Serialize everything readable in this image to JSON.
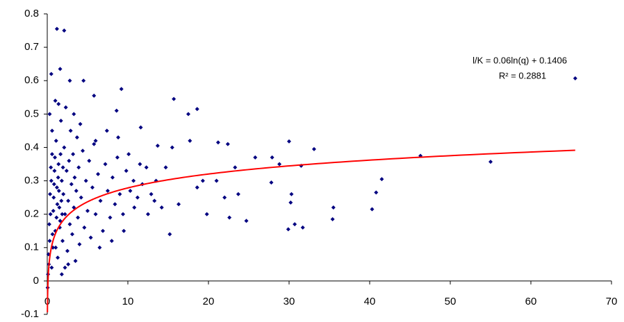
{
  "chart_data": {
    "type": "scatter",
    "x": [
      0.5,
      1.2,
      2.1,
      1.6,
      2.8,
      4.5,
      5.8,
      9.2,
      15.7,
      8.6,
      17.5,
      18.6,
      65.5,
      46.3,
      55,
      41.5,
      40.8,
      40.3,
      35.5,
      35.4,
      31.7,
      30.7,
      29.9,
      30.2,
      30.3,
      30.0,
      33.1,
      31.5,
      28.8,
      27.9,
      27.8,
      25.8,
      24.7,
      23.7,
      23.3,
      22.6,
      22.4,
      21.2,
      21.0,
      22.0,
      19.8,
      19.3,
      18.6,
      17.7,
      16.3,
      15.2,
      15.5,
      14.7,
      13.7,
      13.3,
      12.5,
      11.6,
      11.5,
      10.8,
      10.1,
      9.5,
      8.8,
      8.0,
      7.4,
      6.5,
      6.0,
      0.2,
      0.3,
      0.4,
      0.5,
      0.6,
      0.7,
      0.8,
      0.9,
      1.0,
      1.1,
      1.2,
      1.3,
      1.4,
      1.5,
      1.6,
      1.7,
      1.8,
      1.9,
      2.0,
      2.1,
      2.2,
      2.3,
      2.4,
      2.5,
      2.6,
      2.7,
      2.8,
      2.9,
      3.0,
      3.1,
      3.2,
      3.3,
      3.4,
      3.5,
      3.6,
      3.7,
      3.8,
      3.9,
      4.0,
      4.2,
      4.4,
      4.6,
      4.8,
      5.0,
      5.2,
      5.4,
      5.6,
      5.8,
      6.0,
      6.3,
      6.6,
      6.9,
      7.2,
      7.5,
      7.8,
      8.1,
      8.4,
      8.7,
      9.0,
      9.4,
      9.8,
      10.3,
      10.7,
      11.2,
      11.8,
      12.3,
      12.9,
      13.5,
      14.2,
      0.1,
      0.15,
      0.25,
      0.35,
      0.45,
      0.55,
      0.65,
      0.75,
      0.85,
      0.95,
      1.05,
      1.15,
      1.25,
      1.35,
      1.45,
      1.55,
      1.65,
      1.75,
      1.85,
      1.95,
      0.3,
      0.6,
      1.0,
      1.4,
      3.3,
      4.1,
      1.8,
      2.2,
      2.6,
      0.05
    ],
    "values": [
      0.62,
      0.755,
      0.75,
      0.635,
      0.6,
      0.6,
      0.555,
      0.575,
      0.545,
      0.51,
      0.5,
      0.515,
      0.607,
      0.375,
      0.357,
      0.305,
      0.265,
      0.215,
      0.22,
      0.185,
      0.16,
      0.17,
      0.155,
      0.235,
      0.26,
      0.418,
      0.395,
      0.345,
      0.35,
      0.37,
      0.295,
      0.37,
      0.18,
      0.26,
      0.34,
      0.19,
      0.41,
      0.415,
      0.3,
      0.25,
      0.2,
      0.3,
      0.28,
      0.42,
      0.23,
      0.14,
      0.4,
      0.34,
      0.405,
      0.24,
      0.2,
      0.46,
      0.35,
      0.22,
      0.38,
      0.15,
      0.43,
      0.12,
      0.45,
      0.1,
      0.42,
      0.05,
      0.12,
      0.2,
      0.3,
      0.38,
      0.1,
      0.25,
      0.33,
      0.15,
      0.42,
      0.28,
      0.07,
      0.35,
      0.22,
      0.18,
      0.48,
      0.3,
      0.12,
      0.26,
      0.4,
      0.2,
      0.52,
      0.33,
      0.09,
      0.24,
      0.36,
      0.17,
      0.45,
      0.29,
      0.14,
      0.38,
      0.22,
      0.31,
      0.06,
      0.27,
      0.43,
      0.19,
      0.34,
      0.11,
      0.25,
      0.39,
      0.16,
      0.3,
      0.21,
      0.36,
      0.13,
      0.28,
      0.41,
      0.2,
      0.32,
      0.24,
      0.15,
      0.35,
      0.27,
      0.19,
      0.31,
      0.23,
      0.37,
      0.26,
      0.2,
      0.33,
      0.27,
      0.3,
      0.25,
      0.29,
      0.34,
      0.26,
      0.3,
      0.22,
      0.02,
      0.08,
      0.17,
      0.26,
      0.34,
      0.04,
      0.14,
      0.21,
      0.29,
      0.37,
      0.1,
      0.19,
      0.23,
      0.31,
      0.27,
      0.16,
      0.38,
      0.24,
      0.2,
      0.34,
      0.5,
      0.45,
      0.54,
      0.53,
      0.5,
      0.47,
      0.02,
      0.04,
      0.05,
      -0.02
    ],
    "color": "#000080",
    "trendline": {
      "kind": "log",
      "a": 0.06,
      "b": 0.1406,
      "x_range": [
        0.02,
        65.5
      ],
      "color": "#ff0000"
    },
    "equation": "l/K = 0.06ln(q) + 0.1406",
    "r_squared": "R² = 0.2881",
    "xlim": [
      0,
      70
    ],
    "xticks": [
      0,
      10,
      20,
      30,
      40,
      50,
      60,
      70
    ],
    "ylim": [
      -0.1,
      0.8
    ],
    "yticks": [
      -0.1,
      0,
      0.1,
      0.2,
      0.3,
      0.4,
      0.5,
      0.6,
      0.7,
      0.8
    ]
  }
}
